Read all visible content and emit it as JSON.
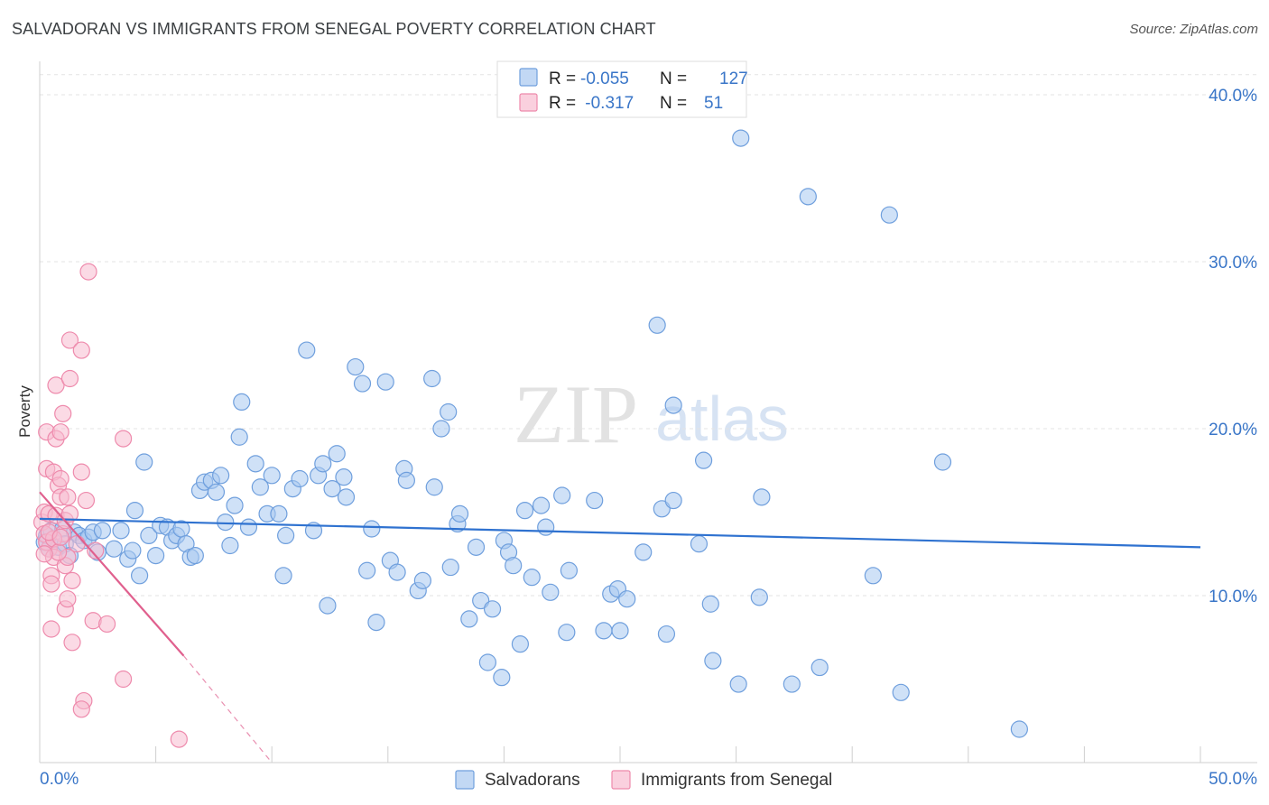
{
  "header": {
    "title": "SALVADORAN VS IMMIGRANTS FROM SENEGAL POVERTY CORRELATION CHART",
    "source": "Source: ZipAtlas.com"
  },
  "watermark": {
    "zip": "ZIP",
    "atlas": "atlas"
  },
  "colors": {
    "salvadoran_fill": "#a8c8f0",
    "salvadoran_stroke": "#6f9fdd",
    "salvadoran_line": "#2f72d0",
    "senegal_fill": "#f8bcd0",
    "senegal_stroke": "#ee8aac",
    "senegal_line": "#e0608e",
    "axis_text": "#3a76c8"
  },
  "stats_box": {
    "rows": [
      {
        "r_label": "R = ",
        "r_value": "-0.055",
        "n_label": "N = ",
        "n_value": "127"
      },
      {
        "r_label": "R = ",
        "r_value": " -0.317",
        "n_label": "N = ",
        "n_value": "51"
      }
    ]
  },
  "chart_data": {
    "type": "scatter",
    "ylabel": "Poverty",
    "xlim": [
      0,
      50
    ],
    "ylim": [
      0,
      42
    ],
    "x_tick_labels": [
      "0.0%",
      "50.0%"
    ],
    "y_ticks": [
      10,
      20,
      30,
      40
    ],
    "y_tick_labels": [
      "10.0%",
      "20.0%",
      "30.0%",
      "40.0%"
    ],
    "grid": true,
    "legend_position": "bottom-center",
    "series": [
      {
        "name": "Salvadorans",
        "trend": {
          "x": [
            0,
            50
          ],
          "y": [
            14.6,
            12.9
          ]
        },
        "points": [
          [
            0.2,
            13.2
          ],
          [
            0.3,
            13.6
          ],
          [
            0.4,
            12.8
          ],
          [
            0.5,
            13.9
          ],
          [
            0.6,
            13.4
          ],
          [
            0.8,
            12.9
          ],
          [
            1.0,
            14.0
          ],
          [
            1.1,
            13.1
          ],
          [
            1.3,
            12.4
          ],
          [
            1.5,
            13.8
          ],
          [
            1.7,
            13.6
          ],
          [
            1.9,
            13.3
          ],
          [
            2.1,
            13.5
          ],
          [
            2.3,
            13.8
          ],
          [
            2.5,
            12.6
          ],
          [
            2.7,
            13.9
          ],
          [
            3.2,
            12.8
          ],
          [
            3.5,
            13.9
          ],
          [
            3.8,
            12.2
          ],
          [
            4.0,
            12.7
          ],
          [
            4.1,
            15.1
          ],
          [
            4.3,
            11.2
          ],
          [
            4.5,
            18.0
          ],
          [
            4.7,
            13.6
          ],
          [
            5.0,
            12.4
          ],
          [
            5.2,
            14.2
          ],
          [
            5.5,
            14.1
          ],
          [
            5.7,
            13.3
          ],
          [
            5.9,
            13.6
          ],
          [
            6.1,
            14.0
          ],
          [
            6.3,
            13.1
          ],
          [
            6.5,
            12.3
          ],
          [
            6.7,
            12.4
          ],
          [
            6.9,
            16.3
          ],
          [
            7.1,
            16.8
          ],
          [
            7.4,
            16.9
          ],
          [
            7.6,
            16.2
          ],
          [
            7.8,
            17.2
          ],
          [
            8.0,
            14.4
          ],
          [
            8.2,
            13.0
          ],
          [
            8.4,
            15.4
          ],
          [
            8.6,
            19.5
          ],
          [
            8.7,
            21.6
          ],
          [
            9.0,
            14.1
          ],
          [
            9.3,
            17.9
          ],
          [
            9.5,
            16.5
          ],
          [
            9.8,
            14.9
          ],
          [
            10.0,
            17.2
          ],
          [
            10.3,
            14.9
          ],
          [
            10.5,
            11.2
          ],
          [
            10.6,
            13.6
          ],
          [
            10.9,
            16.4
          ],
          [
            11.2,
            17.0
          ],
          [
            11.5,
            24.7
          ],
          [
            11.8,
            13.9
          ],
          [
            12.0,
            17.2
          ],
          [
            12.2,
            17.9
          ],
          [
            12.4,
            9.4
          ],
          [
            12.6,
            16.4
          ],
          [
            12.8,
            18.5
          ],
          [
            13.1,
            17.1
          ],
          [
            13.2,
            15.9
          ],
          [
            13.6,
            23.7
          ],
          [
            13.9,
            22.7
          ],
          [
            14.1,
            11.5
          ],
          [
            14.3,
            14.0
          ],
          [
            14.5,
            8.4
          ],
          [
            14.9,
            22.8
          ],
          [
            15.1,
            12.1
          ],
          [
            15.4,
            11.4
          ],
          [
            15.7,
            17.6
          ],
          [
            15.8,
            16.9
          ],
          [
            16.3,
            10.3
          ],
          [
            16.5,
            10.9
          ],
          [
            16.9,
            23.0
          ],
          [
            17.0,
            16.5
          ],
          [
            17.3,
            20.0
          ],
          [
            17.6,
            21.0
          ],
          [
            17.7,
            11.7
          ],
          [
            18.0,
            14.3
          ],
          [
            18.1,
            14.9
          ],
          [
            18.5,
            8.6
          ],
          [
            18.8,
            12.9
          ],
          [
            19.0,
            9.7
          ],
          [
            19.3,
            6.0
          ],
          [
            19.5,
            9.2
          ],
          [
            19.9,
            5.1
          ],
          [
            20.0,
            13.3
          ],
          [
            20.2,
            12.6
          ],
          [
            20.4,
            11.8
          ],
          [
            20.7,
            7.1
          ],
          [
            20.9,
            15.1
          ],
          [
            21.2,
            11.1
          ],
          [
            21.6,
            15.4
          ],
          [
            21.8,
            14.1
          ],
          [
            22.0,
            10.2
          ],
          [
            22.5,
            16.0
          ],
          [
            22.7,
            7.8
          ],
          [
            22.8,
            11.5
          ],
          [
            23.9,
            15.7
          ],
          [
            24.3,
            7.9
          ],
          [
            24.6,
            10.1
          ],
          [
            24.9,
            10.4
          ],
          [
            25.0,
            7.9
          ],
          [
            25.3,
            9.8
          ],
          [
            26.0,
            12.6
          ],
          [
            26.6,
            26.2
          ],
          [
            26.8,
            15.2
          ],
          [
            27.0,
            7.7
          ],
          [
            27.3,
            15.7
          ],
          [
            27.3,
            21.4
          ],
          [
            28.4,
            13.1
          ],
          [
            28.6,
            18.1
          ],
          [
            28.9,
            9.5
          ],
          [
            29.0,
            6.1
          ],
          [
            30.1,
            4.7
          ],
          [
            31.0,
            9.9
          ],
          [
            30.2,
            37.4
          ],
          [
            31.1,
            15.9
          ],
          [
            32.4,
            4.7
          ],
          [
            33.1,
            33.9
          ],
          [
            33.6,
            5.7
          ],
          [
            35.9,
            11.2
          ],
          [
            36.6,
            32.8
          ],
          [
            37.1,
            4.2
          ],
          [
            38.9,
            18.0
          ],
          [
            42.2,
            2.0
          ]
        ]
      },
      {
        "name": "Immigrants from Senegal",
        "trend": {
          "x": [
            0,
            6.2
          ],
          "y": [
            16.2,
            6.4
          ]
        },
        "trend_extension": {
          "x": [
            6.2,
            10.0
          ],
          "y": [
            6.4,
            0.0
          ]
        },
        "points": [
          [
            0.1,
            14.4
          ],
          [
            0.2,
            15.0
          ],
          [
            0.2,
            13.7
          ],
          [
            0.3,
            17.6
          ],
          [
            0.3,
            19.8
          ],
          [
            0.4,
            14.9
          ],
          [
            0.4,
            12.8
          ],
          [
            0.5,
            11.2
          ],
          [
            0.5,
            10.7
          ],
          [
            0.5,
            8.0
          ],
          [
            0.6,
            17.4
          ],
          [
            0.6,
            12.3
          ],
          [
            0.7,
            19.4
          ],
          [
            0.7,
            14.8
          ],
          [
            0.7,
            22.6
          ],
          [
            0.8,
            16.6
          ],
          [
            0.9,
            15.9
          ],
          [
            0.9,
            19.8
          ],
          [
            0.9,
            17.0
          ],
          [
            1.0,
            20.9
          ],
          [
            1.0,
            13.7
          ],
          [
            1.1,
            14.5
          ],
          [
            1.1,
            11.8
          ],
          [
            1.1,
            9.2
          ],
          [
            1.2,
            15.9
          ],
          [
            1.2,
            12.3
          ],
          [
            1.2,
            9.8
          ],
          [
            1.3,
            23.0
          ],
          [
            1.3,
            25.3
          ],
          [
            1.3,
            14.9
          ],
          [
            1.4,
            10.9
          ],
          [
            1.4,
            7.2
          ],
          [
            1.8,
            17.4
          ],
          [
            1.8,
            24.7
          ],
          [
            1.9,
            3.7
          ],
          [
            1.8,
            3.2
          ],
          [
            2.0,
            15.7
          ],
          [
            2.3,
            8.5
          ],
          [
            2.4,
            12.7
          ],
          [
            2.9,
            8.3
          ],
          [
            2.1,
            29.4
          ],
          [
            3.6,
            19.4
          ],
          [
            3.6,
            5.0
          ],
          [
            6.0,
            1.4
          ],
          [
            0.3,
            13.2
          ],
          [
            0.6,
            13.4
          ],
          [
            0.8,
            12.6
          ],
          [
            0.4,
            13.8
          ],
          [
            0.2,
            12.5
          ],
          [
            1.6,
            13.1
          ],
          [
            0.9,
            13.5
          ]
        ]
      }
    ]
  }
}
